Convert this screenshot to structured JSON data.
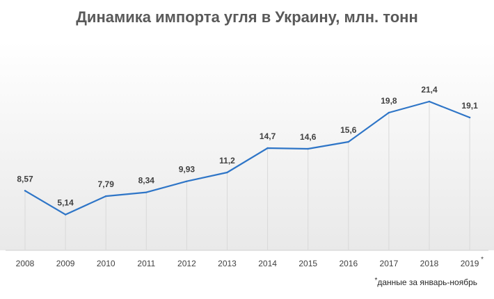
{
  "chart_data": {
    "type": "line",
    "title": "Динамика импорта угля в Украину, млн. тонн",
    "categories": [
      "2008",
      "2009",
      "2010",
      "2011",
      "2012",
      "2013",
      "2014",
      "2015",
      "2016",
      "2017",
      "2018",
      "2019"
    ],
    "category_markers": [
      "",
      "",
      "",
      "",
      "",
      "",
      "",
      "",
      "",
      "",
      "",
      "*"
    ],
    "series": [
      {
        "values": [
          8.57,
          5.14,
          7.79,
          8.34,
          9.93,
          11.2,
          14.7,
          14.6,
          15.6,
          19.8,
          21.4,
          19.1
        ],
        "labels": [
          "8,57",
          "5,14",
          "7,79",
          "8,34",
          "9,93",
          "11,2",
          "14,7",
          "14,6",
          "15,6",
          "19,8",
          "21,4",
          "19,1"
        ],
        "color": "#2e75c7"
      }
    ],
    "ylim": [
      0,
      30
    ],
    "xlabel": "",
    "ylabel": "",
    "grid": "vertical-drop-lines",
    "legend": "none",
    "footnote_marker": "*",
    "footnote": "данные за январь-ноябрь"
  }
}
